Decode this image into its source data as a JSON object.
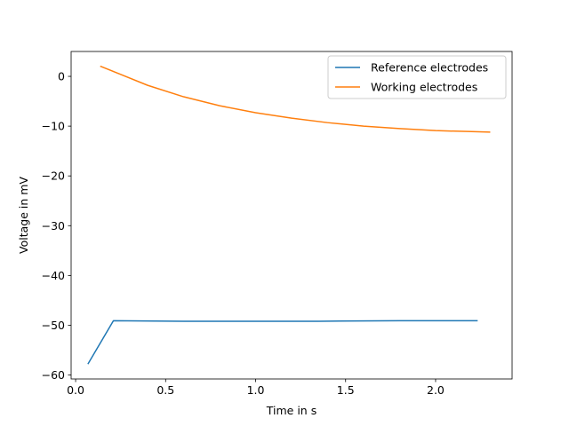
{
  "chart_data": {
    "type": "line",
    "title": "",
    "xlabel": "Time in s",
    "ylabel": "Voltage in mV",
    "xlim": [
      -0.025,
      2.425
    ],
    "ylim": [
      -60.8,
      5.0
    ],
    "x_ticks": [
      0.0,
      0.5,
      1.0,
      1.5,
      2.0
    ],
    "x_tick_labels": [
      "0.0",
      "0.5",
      "1.0",
      "1.5",
      "2.0"
    ],
    "y_ticks": [
      0,
      -10,
      -20,
      -30,
      -40,
      -50,
      -60
    ],
    "y_tick_labels": [
      "0",
      "−10",
      "−20",
      "−30",
      "−40",
      "−50",
      "−60"
    ],
    "grid": false,
    "legend_position": "top-right",
    "series": [
      {
        "name": "Reference electrodes",
        "color": "#1f77b4",
        "x": [
          0.07,
          0.21,
          0.6,
          1.0,
          1.35,
          1.8,
          2.23
        ],
        "y": [
          -57.7,
          -49.1,
          -49.2,
          -49.2,
          -49.2,
          -49.1,
          -49.1
        ]
      },
      {
        "name": "Working electrodes",
        "color": "#ff7f0e",
        "x": [
          0.14,
          0.25,
          0.4,
          0.6,
          0.8,
          1.0,
          1.2,
          1.4,
          1.6,
          1.8,
          2.0,
          2.2,
          2.3
        ],
        "y": [
          2.0,
          0.4,
          -1.8,
          -4.1,
          -5.9,
          -7.3,
          -8.4,
          -9.3,
          -10.0,
          -10.5,
          -10.9,
          -11.1,
          -11.2
        ]
      }
    ]
  }
}
